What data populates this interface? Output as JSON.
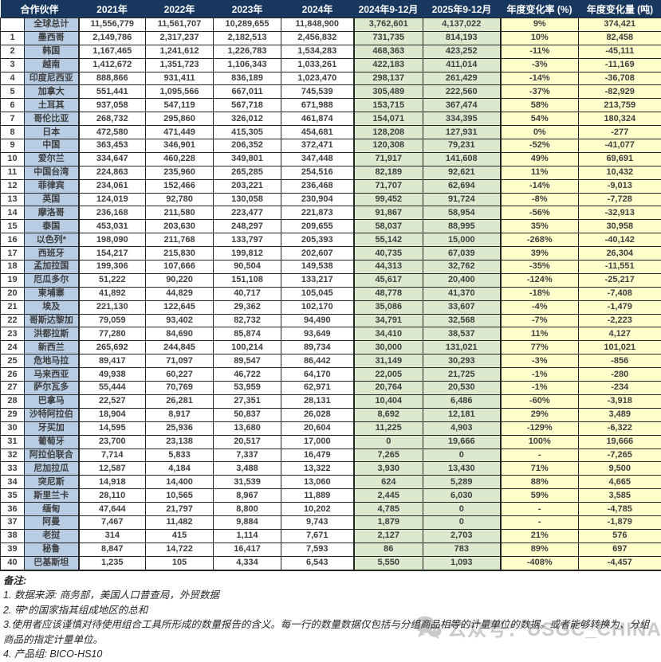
{
  "table": {
    "columns": [
      "合作伙伴",
      "2021年",
      "2022年",
      "2023年",
      "2024年",
      "2024年9-12月",
      "2025年9-12月",
      "年度变化率 (%)",
      "年度变化量 (吨)"
    ],
    "total_row": [
      "",
      "全球总计",
      "11,556,779",
      "11,561,707",
      "10,289,655",
      "11,848,900",
      "3,762,601",
      "4,137,022",
      "9%",
      "374,421"
    ],
    "rows": [
      [
        "1",
        "墨西哥",
        "2,149,786",
        "2,317,237",
        "2,182,513",
        "2,456,832",
        "731,735",
        "814,193",
        "10%",
        "82,458"
      ],
      [
        "2",
        "韩国",
        "1,167,465",
        "1,241,612",
        "1,226,783",
        "1,534,283",
        "468,363",
        "423,252",
        "-11%",
        "-45,111"
      ],
      [
        "3",
        "越南",
        "1,412,672",
        "1,351,723",
        "1,106,343",
        "1,033,261",
        "422,183",
        "411,014",
        "-3%",
        "-11,169"
      ],
      [
        "4",
        "印度尼西亚",
        "888,866",
        "931,411",
        "836,189",
        "1,023,470",
        "298,137",
        "261,429",
        "-14%",
        "-36,708"
      ],
      [
        "5",
        "加拿大",
        "551,441",
        "1,095,566",
        "667,011",
        "745,539",
        "305,489",
        "222,560",
        "-37%",
        "-82,929"
      ],
      [
        "6",
        "土耳其",
        "937,058",
        "547,119",
        "567,718",
        "671,988",
        "153,715",
        "367,474",
        "58%",
        "213,759"
      ],
      [
        "7",
        "哥伦比亚",
        "268,732",
        "295,860",
        "326,012",
        "461,874",
        "154,071",
        "334,395",
        "54%",
        "180,324"
      ],
      [
        "8",
        "日本",
        "472,580",
        "471,449",
        "415,305",
        "454,681",
        "128,208",
        "127,931",
        "0%",
        "-277"
      ],
      [
        "9",
        "中国",
        "363,453",
        "346,901",
        "206,352",
        "372,471",
        "120,308",
        "79,231",
        "-52%",
        "-41,077"
      ],
      [
        "10",
        "爱尔兰",
        "334,647",
        "460,228",
        "349,801",
        "347,448",
        "71,917",
        "141,608",
        "49%",
        "69,691"
      ],
      [
        "11",
        "中国台湾",
        "224,863",
        "235,960",
        "265,285",
        "254,516",
        "82,189",
        "92,621",
        "11%",
        "10,432"
      ],
      [
        "12",
        "菲律宾",
        "234,061",
        "152,466",
        "203,221",
        "236,468",
        "71,707",
        "62,694",
        "-14%",
        "-9,013"
      ],
      [
        "13",
        "英国",
        "124,019",
        "92,780",
        "130,058",
        "230,904",
        "99,452",
        "91,724",
        "-8%",
        "-7,728"
      ],
      [
        "14",
        "摩洛哥",
        "236,168",
        "211,580",
        "223,477",
        "221,873",
        "91,867",
        "58,954",
        "-56%",
        "-32,913"
      ],
      [
        "15",
        "泰国",
        "453,031",
        "203,630",
        "248,297",
        "209,655",
        "58,037",
        "88,995",
        "35%",
        "30,958"
      ],
      [
        "16",
        "以色列*",
        "198,090",
        "211,768",
        "133,797",
        "205,393",
        "55,142",
        "15,000",
        "-268%",
        "-40,142"
      ],
      [
        "17",
        "西班牙",
        "154,217",
        "215,830",
        "199,812",
        "202,607",
        "40,735",
        "67,039",
        "39%",
        "26,304"
      ],
      [
        "18",
        "孟加拉国",
        "199,306",
        "107,666",
        "90,504",
        "149,538",
        "44,313",
        "32,762",
        "-35%",
        "-11,551"
      ],
      [
        "19",
        "厄瓜多尔",
        "51,222",
        "90,220",
        "151,108",
        "133,217",
        "45,617",
        "20,400",
        "-124%",
        "-25,217"
      ],
      [
        "20",
        "柬埔寨",
        "41,892",
        "44,829",
        "40,717",
        "105,045",
        "48,778",
        "41,370",
        "-18%",
        "-7,408"
      ],
      [
        "21",
        "埃及",
        "221,130",
        "122,645",
        "29,362",
        "102,170",
        "35,086",
        "33,607",
        "-4%",
        "-1,479"
      ],
      [
        "22",
        "哥斯达黎加",
        "79,059",
        "93,402",
        "82,732",
        "94,490",
        "34,791",
        "32,568",
        "-7%",
        "-2,223"
      ],
      [
        "23",
        "洪都拉斯",
        "77,280",
        "84,690",
        "85,874",
        "93,649",
        "34,410",
        "38,537",
        "11%",
        "4,127"
      ],
      [
        "24",
        "新西兰",
        "265,692",
        "244,845",
        "100,214",
        "89,734",
        "30,000",
        "131,021",
        "77%",
        "101,021"
      ],
      [
        "25",
        "危地马拉",
        "89,417",
        "71,097",
        "89,547",
        "86,442",
        "31,149",
        "30,293",
        "-3%",
        "-856"
      ],
      [
        "26",
        "马来西亚",
        "49,938",
        "60,227",
        "46,722",
        "64,170",
        "22,005",
        "21,725",
        "-1%",
        "-280"
      ],
      [
        "27",
        "萨尔瓦多",
        "55,444",
        "70,769",
        "53,959",
        "62,971",
        "20,764",
        "20,530",
        "-1%",
        "-234"
      ],
      [
        "28",
        "巴拿马",
        "22,527",
        "26,281",
        "27,351",
        "28,131",
        "10,404",
        "6,486",
        "-60%",
        "-3,918"
      ],
      [
        "29",
        "沙特阿拉伯",
        "18,904",
        "8,917",
        "50,837",
        "26,028",
        "8,692",
        "12,181",
        "29%",
        "3,489"
      ],
      [
        "30",
        "牙买加",
        "14,595",
        "25,936",
        "13,680",
        "20,604",
        "11,225",
        "4,903",
        "-129%",
        "-6,322"
      ],
      [
        "31",
        "葡萄牙",
        "23,700",
        "23,138",
        "20,517",
        "17,000",
        "0",
        "19,666",
        "100%",
        "19,666"
      ],
      [
        "32",
        "阿拉伯联合",
        "7,714",
        "5,833",
        "7,337",
        "16,479",
        "7,265",
        "0",
        "-",
        "-7,265"
      ],
      [
        "33",
        "尼加拉瓜",
        "12,587",
        "4,184",
        "3,488",
        "13,322",
        "3,930",
        "13,430",
        "71%",
        "9,500"
      ],
      [
        "34",
        "突尼斯",
        "14,918",
        "14,400",
        "31,539",
        "13,060",
        "624",
        "5,289",
        "88%",
        "4,665"
      ],
      [
        "35",
        "斯里兰卡",
        "28,110",
        "10,565",
        "8,967",
        "11,889",
        "2,445",
        "6,030",
        "59%",
        "3,585"
      ],
      [
        "36",
        "缅甸",
        "47,644",
        "21,797",
        "8,800",
        "10,202",
        "4,785",
        "0",
        "-",
        "-4,785"
      ],
      [
        "37",
        "阿曼",
        "7,467",
        "11,482",
        "9,884",
        "9,743",
        "1,879",
        "0",
        "-",
        "-1,879"
      ],
      [
        "38",
        "老挝",
        "314",
        "415",
        "1,114",
        "7,671",
        "2,127",
        "2,703",
        "21%",
        "576"
      ],
      [
        "39",
        "秘鲁",
        "8,847",
        "14,722",
        "16,417",
        "7,593",
        "86",
        "783",
        "89%",
        "697"
      ],
      [
        "40",
        "巴基斯坦",
        "1,235",
        "105",
        "4,334",
        "6,543",
        "5,550",
        "1,093",
        "-408%",
        "-4,457"
      ]
    ]
  },
  "notes": {
    "heading": "备注:",
    "items": [
      "1. 数据来源: 商务部，美国人口普查局，外贸数据",
      "2. 带*的国家指其组成地区的总和",
      "3.使用者应该谨慎对待使用组合工具所形成的数量报告的含义。每一行的数量数据仅包括与分组商品相等的计量单位的数据。或者能够转换为、分组商品的指定计量单位。",
      "4. 产品组: BICO-HS10"
    ]
  },
  "watermark": {
    "icon": "wechat-icon",
    "text": "公众号：USGC_CHINA"
  },
  "colors": {
    "header_bg": "#17375E",
    "partner_col_bg": "#B8CCE4",
    "period_col_bg": "#DDE9CF",
    "change_col_bg": "#FFFFCC",
    "watermark_gray": "#c6c6c6"
  }
}
